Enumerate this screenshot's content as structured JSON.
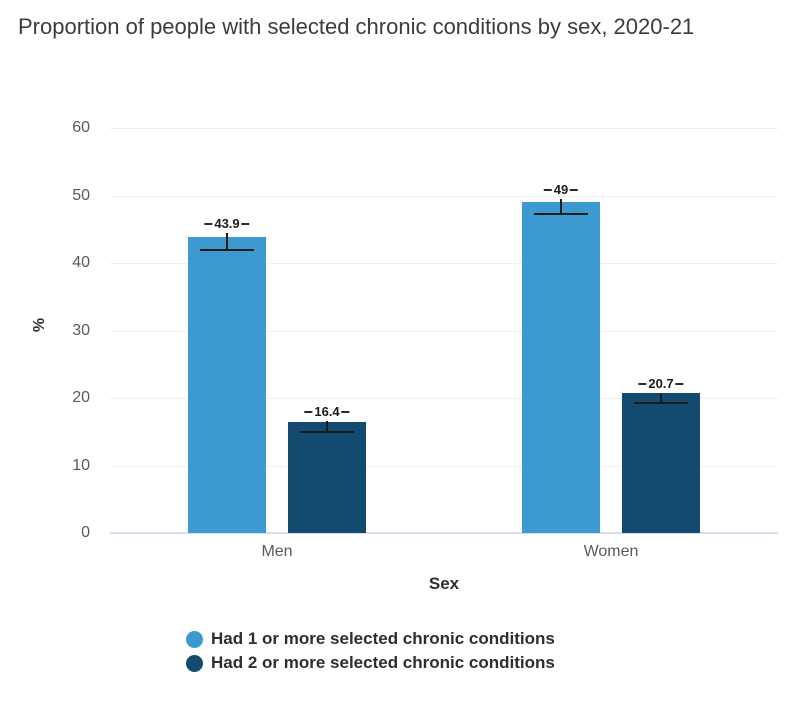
{
  "title": "Proportion of people with selected chronic conditions by sex, 2020-21",
  "colors": {
    "series_light_blue": "#3D9AD1",
    "series_dark_navy": "#134A70",
    "gridline": "#efefef",
    "zero_axis_line": "#d5def0",
    "tick_text": "#5a5a5a",
    "title_text": "#3c3c3c",
    "error_bar": "#1a1a1a"
  },
  "chart_data": {
    "type": "bar",
    "categories": [
      "Men",
      "Women"
    ],
    "series": [
      {
        "name": "Had 1 or more selected chronic conditions",
        "color": "#3D9AD1",
        "values": [
          43.9,
          49
        ],
        "labels": [
          "43.9",
          "49"
        ],
        "errors": [
          1.9,
          1.8
        ]
      },
      {
        "name": "Had 2 or more selected chronic conditions",
        "color": "#134A70",
        "values": [
          16.4,
          20.7
        ],
        "labels": [
          "16.4",
          "20.7"
        ],
        "errors": [
          1.5,
          1.4
        ]
      }
    ],
    "title": "Proportion of people with selected chronic conditions by sex, 2020-21",
    "xlabel": "Sex",
    "ylabel": "%",
    "ylim": [
      0,
      60
    ],
    "yticks": [
      0,
      10,
      20,
      30,
      40,
      50,
      60
    ],
    "grid": true,
    "error_bars": true,
    "legend_position": "bottom-left"
  }
}
